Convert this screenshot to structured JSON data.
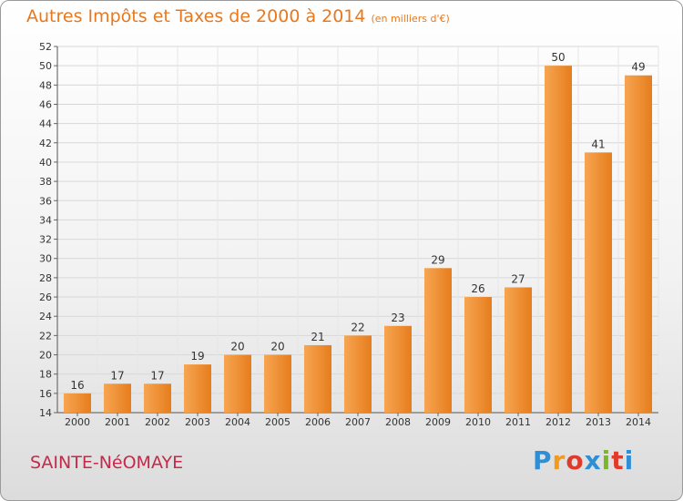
{
  "chart_data": {
    "type": "bar",
    "title": "Autres Impôts et Taxes de 2000 à 2014",
    "subtitle": "(en milliers d'€)",
    "categories": [
      "2000",
      "2001",
      "2002",
      "2003",
      "2004",
      "2005",
      "2006",
      "2007",
      "2008",
      "2009",
      "2010",
      "2011",
      "2012",
      "2013",
      "2014"
    ],
    "values": [
      16,
      17,
      17,
      19,
      20,
      20,
      21,
      22,
      23,
      29,
      26,
      27,
      50,
      41,
      49
    ],
    "ylim": [
      14,
      52
    ],
    "yticks": [
      14,
      16,
      18,
      20,
      22,
      24,
      26,
      28,
      30,
      32,
      34,
      36,
      38,
      40,
      42,
      44,
      46,
      48,
      50,
      52
    ],
    "grid": true,
    "bar_color": "#f0922e"
  },
  "commune": "SAINTE-NéOMAYE",
  "logo": {
    "letters": [
      "P",
      "r",
      "o",
      "x",
      "i",
      "t",
      "i"
    ],
    "colors": [
      "#2e8fd6",
      "#f39a1d",
      "#e03a2a",
      "#2e8fd6",
      "#7ab829",
      "#e03a2a",
      "#2e8fd6"
    ]
  }
}
